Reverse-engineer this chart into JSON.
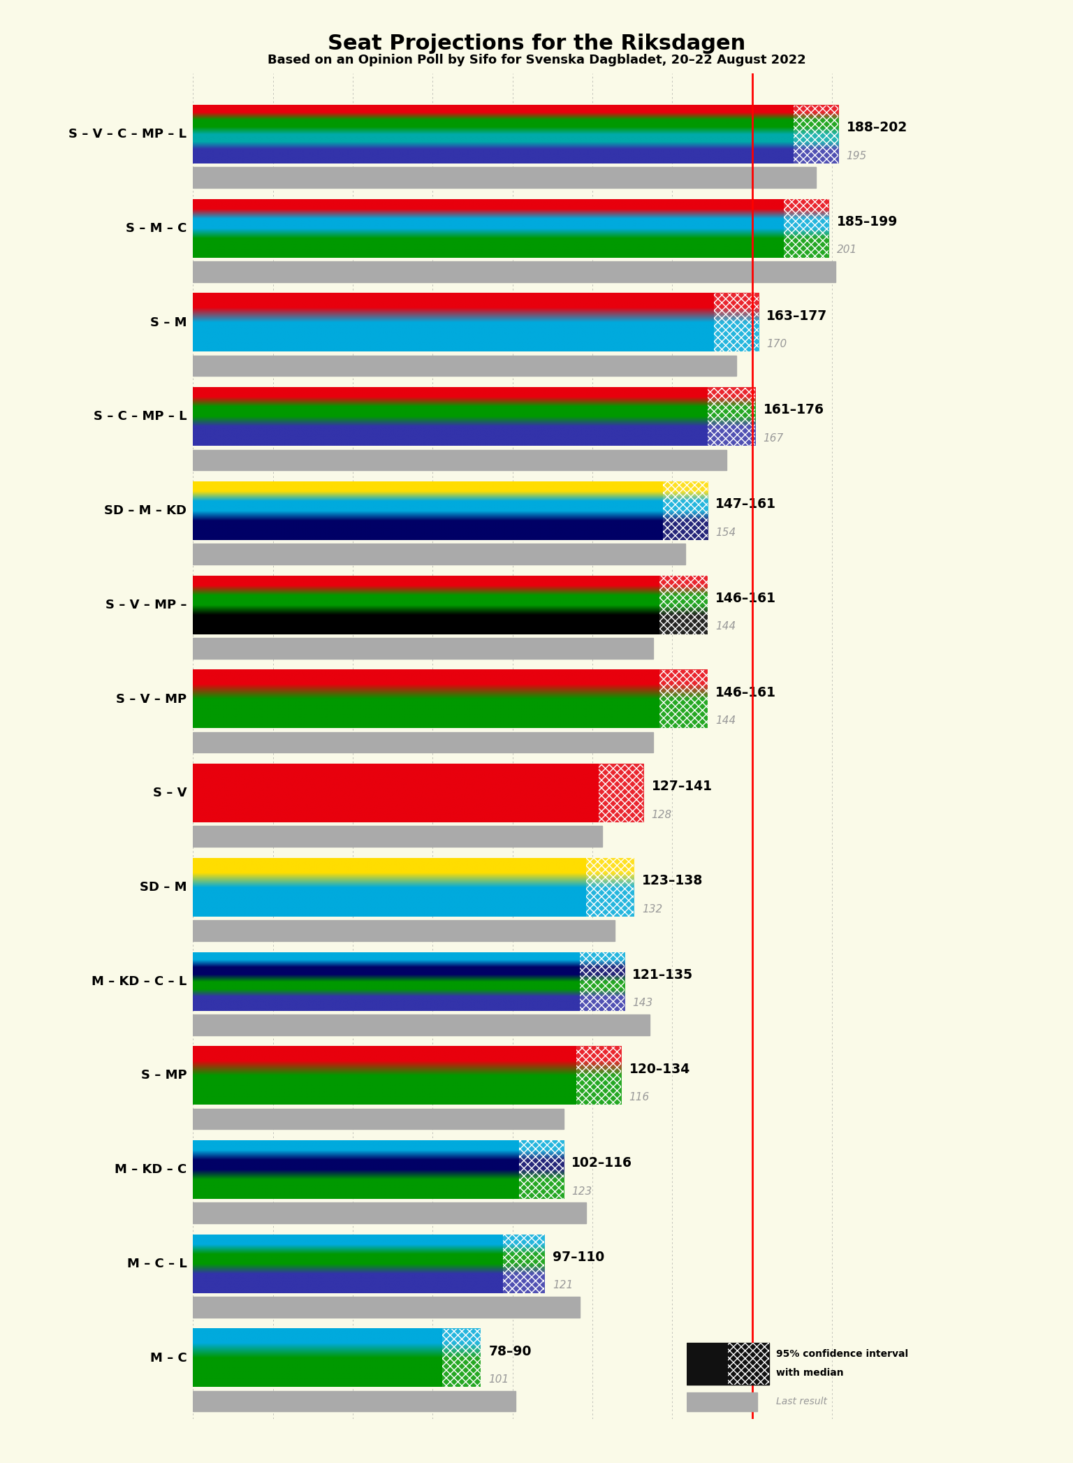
{
  "title": "Seat Projections for the Riksdagen",
  "subtitle": "Based on an Opinion Poll by Sifo for Svenska Dagbladet, 20–22 August 2022",
  "background_color": "#FAFAE8",
  "majority_line": 175,
  "xlim_max": 215,
  "coalitions": [
    {
      "label": "S – V – C – MP – L",
      "underline": true,
      "range_low": 188,
      "range_high": 202,
      "last_result": 195,
      "party_colors": [
        "#E8000D",
        "#009900",
        "#00AAAA",
        "#3333AA"
      ]
    },
    {
      "label": "S – M – C",
      "underline": false,
      "range_low": 185,
      "range_high": 199,
      "last_result": 201,
      "party_colors": [
        "#E8000D",
        "#00AADD",
        "#009900"
      ]
    },
    {
      "label": "S – M",
      "underline": false,
      "range_low": 163,
      "range_high": 177,
      "last_result": 170,
      "party_colors": [
        "#E8000D",
        "#00AADD"
      ]
    },
    {
      "label": "S – C – MP – L",
      "underline": false,
      "range_low": 161,
      "range_high": 176,
      "last_result": 167,
      "party_colors": [
        "#E8000D",
        "#009900",
        "#3333AA"
      ]
    },
    {
      "label": "SD – M – KD",
      "underline": false,
      "range_low": 147,
      "range_high": 161,
      "last_result": 154,
      "party_colors": [
        "#FFDD00",
        "#00AADD",
        "#000066"
      ]
    },
    {
      "label": "S – V – MP –",
      "underline": false,
      "range_low": 146,
      "range_high": 161,
      "last_result": 144,
      "party_colors": [
        "#E8000D",
        "#009900",
        "#000000"
      ]
    },
    {
      "label": "S – V – MP",
      "underline": false,
      "range_low": 146,
      "range_high": 161,
      "last_result": 144,
      "party_colors": [
        "#E8000D",
        "#009900"
      ]
    },
    {
      "label": "S – V",
      "underline": false,
      "range_low": 127,
      "range_high": 141,
      "last_result": 128,
      "party_colors": [
        "#E8000D"
      ]
    },
    {
      "label": "SD – M",
      "underline": false,
      "range_low": 123,
      "range_high": 138,
      "last_result": 132,
      "party_colors": [
        "#FFDD00",
        "#00AADD"
      ]
    },
    {
      "label": "M – KD – C – L",
      "underline": false,
      "range_low": 121,
      "range_high": 135,
      "last_result": 143,
      "party_colors": [
        "#00AADD",
        "#000066",
        "#009900",
        "#3333AA"
      ]
    },
    {
      "label": "S – MP",
      "underline": true,
      "range_low": 120,
      "range_high": 134,
      "last_result": 116,
      "party_colors": [
        "#E8000D",
        "#009900"
      ]
    },
    {
      "label": "M – KD – C",
      "underline": false,
      "range_low": 102,
      "range_high": 116,
      "last_result": 123,
      "party_colors": [
        "#00AADD",
        "#000066",
        "#009900"
      ]
    },
    {
      "label": "M – C – L",
      "underline": false,
      "range_low": 97,
      "range_high": 110,
      "last_result": 121,
      "party_colors": [
        "#00AADD",
        "#009900",
        "#3333AA"
      ]
    },
    {
      "label": "M – C",
      "underline": false,
      "range_low": 78,
      "range_high": 90,
      "last_result": 101,
      "party_colors": [
        "#00AADD",
        "#009900"
      ]
    }
  ]
}
